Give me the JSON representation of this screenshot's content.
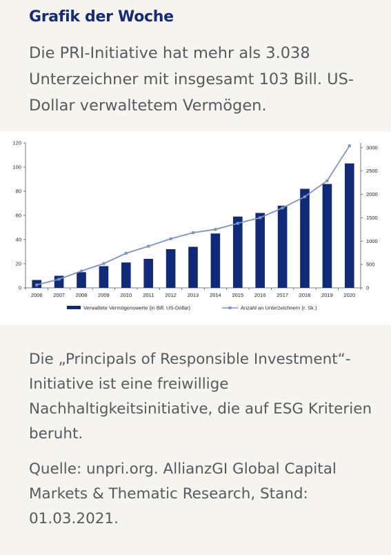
{
  "heading": "Grafik der Woche",
  "lead": "Die PRI-Initiative hat mehr als 3.038 Unterzeichner mit insgesamt 103 Bill. US-Dollar verwaltetem Vermögen.",
  "body": "Die „Principals of Responsible Investment“-Initiative ist eine freiwillige Nachhaltigkeitsinitiative, die auf ESG Kriterien beruht.",
  "source": "Quelle: unpri.org. AllianzGI Global Capital Markets & Thematic Research, Stand: 01.03.2021.",
  "colors": {
    "accent": "#122b7a",
    "bars": "#0f2a78",
    "line": "#7d93bd",
    "text": "#555a60"
  },
  "chart_data": {
    "type": "bar",
    "categories": [
      "2006",
      "2007",
      "2008",
      "2009",
      "2010",
      "2011",
      "2012",
      "2013",
      "2014",
      "2015",
      "2016",
      "2017",
      "2018",
      "2019",
      "2020"
    ],
    "series": [
      {
        "name": "Verwaltete Vermögenswerte (in Bill. US-Dollar)",
        "type": "bar",
        "axis": "left",
        "values": [
          6.5,
          10,
          13,
          18,
          21,
          24,
          32,
          34,
          45,
          59,
          62,
          68,
          82,
          86,
          103
        ]
      },
      {
        "name": "Anzahl an Unterzeichnern (r. Sk.)",
        "type": "line",
        "axis": "right",
        "values": [
          63,
          185,
          360,
          520,
          740,
          890,
          1050,
          1180,
          1250,
          1380,
          1500,
          1710,
          1950,
          2290,
          3038
        ]
      }
    ],
    "yticks": [
      0,
      20,
      40,
      60,
      80,
      100,
      120
    ],
    "y2ticks": [
      0,
      500,
      1000,
      1500,
      2000,
      2500,
      3000
    ],
    "ylim": [
      0,
      120
    ],
    "y2lim": [
      0,
      3100
    ],
    "xlabel": "",
    "ylabel": "",
    "legend_position": "bottom",
    "grid": false
  }
}
